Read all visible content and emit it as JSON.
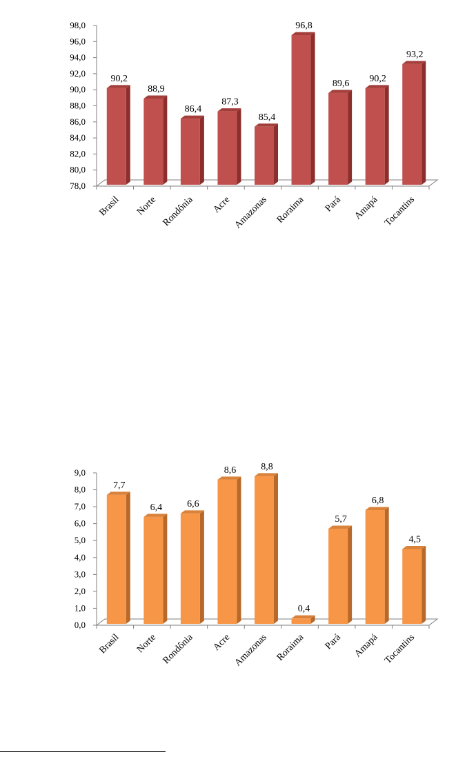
{
  "chart_data": [
    {
      "type": "bar",
      "categories": [
        "Brasil",
        "Norte",
        "Rondônia",
        "Acre",
        "Amazonas",
        "Roraima",
        "Pará",
        "Amapá",
        "Tocantins"
      ],
      "values": [
        90.2,
        88.9,
        86.4,
        87.3,
        85.4,
        96.8,
        89.6,
        90.2,
        93.2
      ],
      "value_labels": [
        "90,2",
        "88,9",
        "86,4",
        "87,3",
        "85,4",
        "96,8",
        "89,6",
        "90,2",
        "93,2"
      ],
      "yticks": [
        "78,0",
        "80,0",
        "82,0",
        "84,0",
        "86,0",
        "88,0",
        "90,0",
        "92,0",
        "94,0",
        "96,0",
        "98,0"
      ],
      "ylim": [
        78,
        98
      ],
      "grid": false,
      "style": "3d-column",
      "colors": {
        "front": "#c0504d",
        "side": "#8c2f2c",
        "top": "#a33e3b"
      }
    },
    {
      "type": "bar",
      "categories": [
        "Brasil",
        "Norte",
        "Rondônia",
        "Acre",
        "Amazonas",
        "Roraima",
        "Pará",
        "Amapá",
        "Tocantins"
      ],
      "values": [
        7.7,
        6.4,
        6.6,
        8.6,
        8.8,
        0.4,
        5.7,
        6.8,
        4.5
      ],
      "value_labels": [
        "7,7",
        "6,4",
        "6,6",
        "8,6",
        "8,8",
        "0,4",
        "5,7",
        "6,8",
        "4,5"
      ],
      "yticks": [
        "0,0",
        "1,0",
        "2,0",
        "3,0",
        "4,0",
        "5,0",
        "6,0",
        "7,0",
        "8,0",
        "9,0"
      ],
      "ylim": [
        0,
        9
      ],
      "grid": false,
      "style": "3d-column",
      "colors": {
        "front": "#f79646",
        "side": "#b8692a",
        "top": "#d9823b"
      }
    }
  ]
}
